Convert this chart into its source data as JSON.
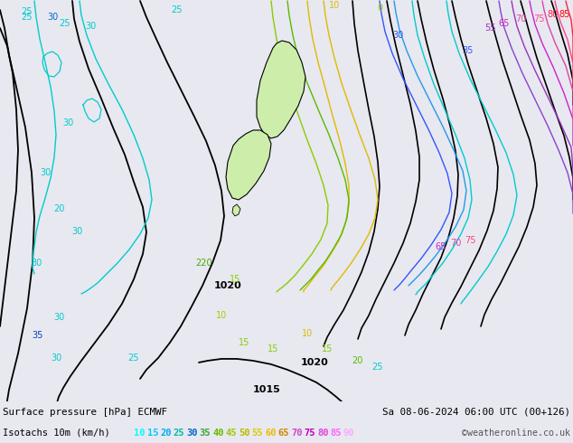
{
  "title_left": "Surface pressure [hPa] ECMWF",
  "title_right": "Sa 08-06-2024 06:00 UTC (00+126)",
  "legend_label": "Isotachs 10m (km/h)",
  "legend_values": [
    10,
    15,
    20,
    25,
    30,
    35,
    40,
    45,
    50,
    55,
    60,
    65,
    70,
    75,
    80,
    85,
    90
  ],
  "legend_colors": [
    "#00ffff",
    "#00ccff",
    "#00aaee",
    "#00bbaa",
    "#0066cc",
    "#33aa33",
    "#66bb00",
    "#99cc00",
    "#bbbb00",
    "#ddcc00",
    "#eebb00",
    "#cc8800",
    "#cc44cc",
    "#bb00bb",
    "#dd44dd",
    "#ff66ff",
    "#ffaaff"
  ],
  "bg_color": "#e0e0e8",
  "map_bg": "#e8e8f0",
  "nz_fill": "#cceeaa",
  "bar_bg": "#b0b0b8",
  "credit": "©weatheronline.co.uk"
}
